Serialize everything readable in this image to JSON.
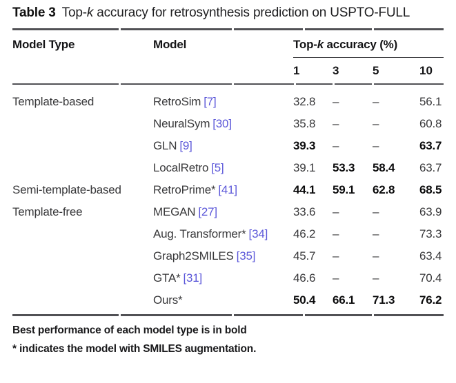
{
  "caption": {
    "label": "Table 3",
    "pre": "Top-",
    "k": "k",
    "post": " accuracy for retrosynthesis prediction on USPTO-FULL"
  },
  "header": {
    "model_type": "Model Type",
    "model": "Model",
    "topk_pre": "Top-",
    "topk_k": "k",
    "topk_post": " accuracy (%)",
    "k_ticks": [
      "1",
      "3",
      "5",
      "10"
    ]
  },
  "rows": [
    {
      "type": "Template-based",
      "model": "RetroSim",
      "cite": "[7]",
      "k1": "32.8",
      "k3": "–",
      "k5": "–",
      "k10": "56.1",
      "bold": []
    },
    {
      "type": "",
      "model": "NeuralSym",
      "cite": "[30]",
      "k1": "35.8",
      "k3": "–",
      "k5": "–",
      "k10": "60.8",
      "bold": []
    },
    {
      "type": "",
      "model": "GLN",
      "cite": "[9]",
      "k1": "39.3",
      "k3": "–",
      "k5": "–",
      "k10": "63.7",
      "bold": [
        "k1",
        "k10"
      ]
    },
    {
      "type": "",
      "model": "LocalRetro",
      "cite": "[5]",
      "k1": "39.1",
      "k3": "53.3",
      "k5": "58.4",
      "k10": "63.7",
      "bold": [
        "k3",
        "k5"
      ]
    },
    {
      "type": "Semi-template-based",
      "model": "RetroPrime*",
      "cite": "[41]",
      "k1": "44.1",
      "k3": "59.1",
      "k5": "62.8",
      "k10": "68.5",
      "bold": [
        "k1",
        "k3",
        "k5",
        "k10"
      ]
    },
    {
      "type": "Template-free",
      "model": "MEGAN",
      "cite": "[27]",
      "k1": "33.6",
      "k3": "–",
      "k5": "–",
      "k10": "63.9",
      "bold": []
    },
    {
      "type": "",
      "model": "Aug. Transformer*",
      "cite": "[34]",
      "k1": "46.2",
      "k3": "–",
      "k5": "–",
      "k10": "73.3",
      "bold": []
    },
    {
      "type": "",
      "model": "Graph2SMILES",
      "cite": "[35]",
      "k1": "45.7",
      "k3": "–",
      "k5": "–",
      "k10": "63.4",
      "bold": []
    },
    {
      "type": "",
      "model": "GTA*",
      "cite": "[31]",
      "k1": "46.6",
      "k3": "–",
      "k5": "–",
      "k10": "70.4",
      "bold": []
    },
    {
      "type": "",
      "model": "Ours*",
      "cite": "",
      "k1": "50.4",
      "k3": "66.1",
      "k5": "71.3",
      "k10": "76.2",
      "bold": [
        "k1",
        "k3",
        "k5",
        "k10"
      ]
    }
  ],
  "footnotes": [
    "Best performance of each model type is in bold",
    "* indicates the model with SMILES augmentation."
  ],
  "colors": {
    "citation_link": "#5b57d9",
    "rule": "#515155"
  }
}
